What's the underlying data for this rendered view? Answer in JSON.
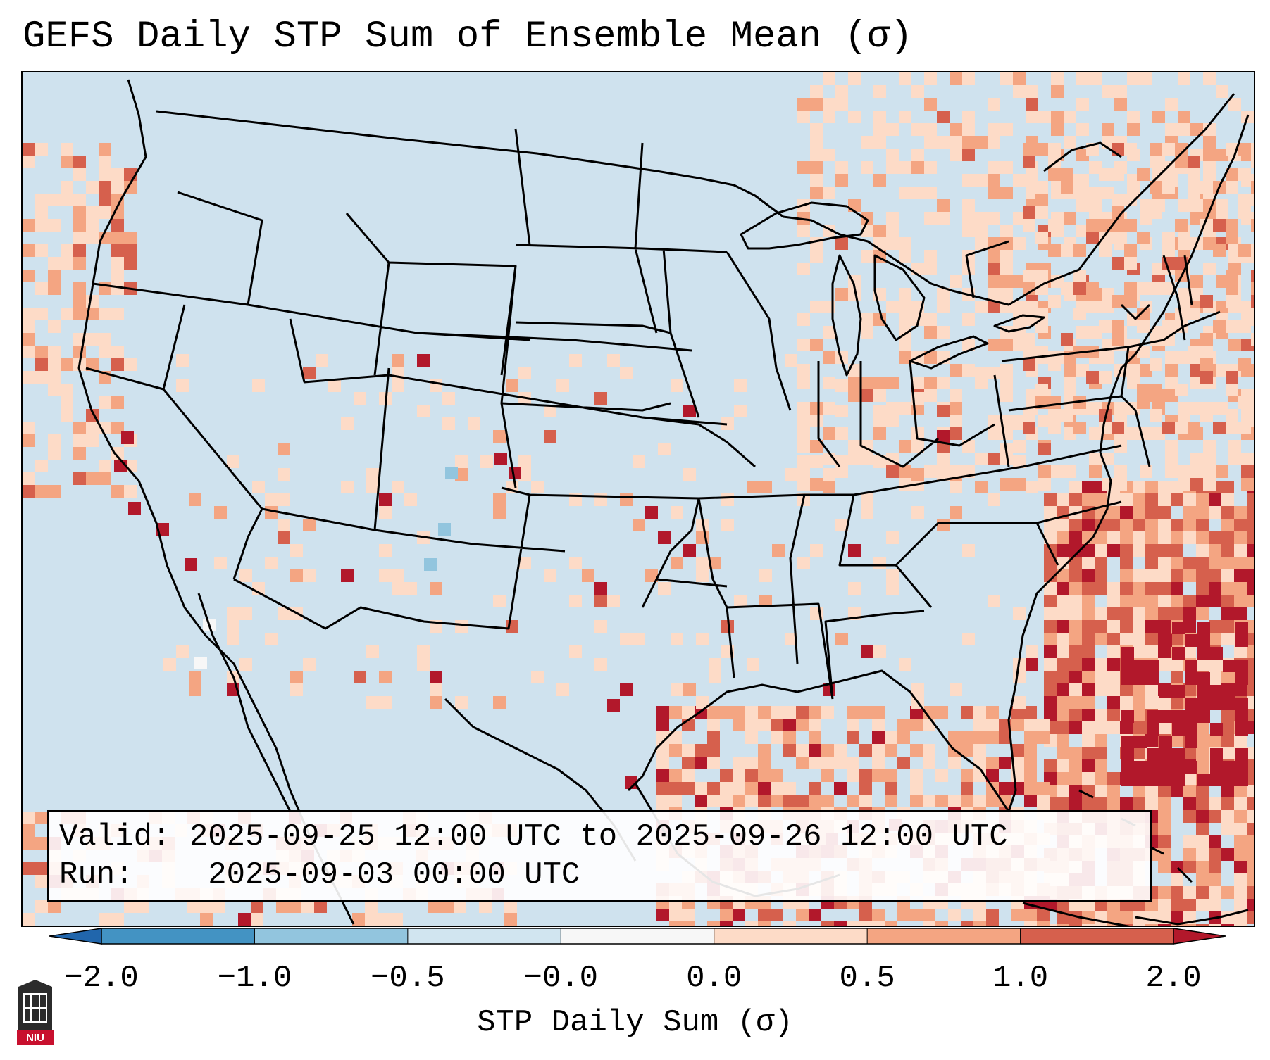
{
  "title": "GEFS Daily STP Sum of Ensemble Mean (σ)",
  "info": {
    "valid_label": "Valid:",
    "valid_value": "2025-09-25 12:00 UTC to 2025-09-26 12:00 UTC",
    "run_label": "Run:",
    "run_value": "2025-09-03 00:00 UTC"
  },
  "colorbar": {
    "label": "STP Daily Sum (σ)",
    "ticks": [
      "−2.0",
      "−1.0",
      "−0.5",
      "−0.0",
      "0.0",
      "0.5",
      "1.0",
      "2.0"
    ],
    "bins": [
      {
        "from": -2.0,
        "to": -1.0,
        "color": "#4393c3"
      },
      {
        "from": -1.0,
        "to": -0.5,
        "color": "#92c5de"
      },
      {
        "from": -0.5,
        "to": -0.0,
        "color": "#d1e5f0"
      },
      {
        "from": -0.0,
        "to": 0.0,
        "color": "#f7f7f7"
      },
      {
        "from": 0.0,
        "to": 0.5,
        "color": "#fddbc7"
      },
      {
        "from": 0.5,
        "to": 1.0,
        "color": "#f4a582"
      },
      {
        "from": 1.0,
        "to": 2.0,
        "color": "#d6604d"
      }
    ],
    "under_color": "#2166ac",
    "over_color": "#b2182b"
  },
  "colors": {
    "background": "#cfe2ee",
    "light_pos": "#fddbc7",
    "med_pos": "#f4a582",
    "strong_pos": "#d6604d",
    "max_pos": "#b2182b",
    "light_neg": "#92c5de",
    "neutral": "#f7f7f7",
    "boundary": "#000000"
  },
  "logo": {
    "text": "NIU",
    "icon": "university-tower-icon",
    "color": "#c8102e"
  }
}
